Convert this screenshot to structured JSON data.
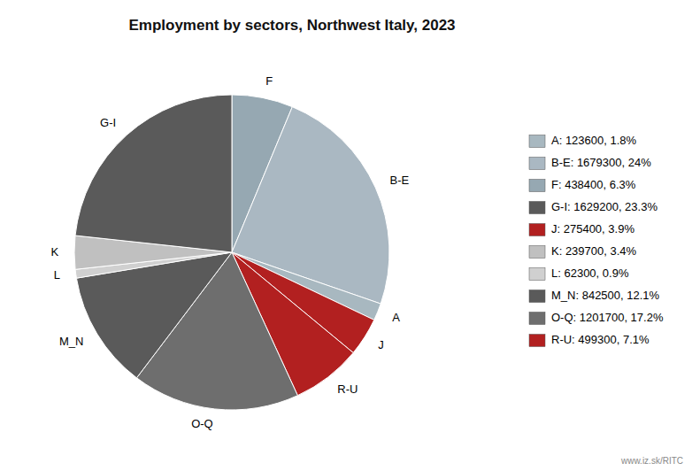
{
  "chart_data": {
    "type": "pie",
    "title": "Employment by sectors, Northwest Italy, 2023",
    "categories": [
      "F",
      "B-E",
      "A",
      "J",
      "R-U",
      "O-Q",
      "M_N",
      "L",
      "K",
      "G-I"
    ],
    "values": [
      438400,
      1679300,
      123600,
      275400,
      499300,
      1201700,
      842500,
      62300,
      239700,
      1629200
    ],
    "colors": [
      "#96a8b2",
      "#aab8c2",
      "#a8b8c0",
      "#b22020",
      "#b22020",
      "#6e6e6e",
      "#5a5a5a",
      "#d0d0d0",
      "#c0c0c0",
      "#5a5a5a"
    ],
    "legend": "right",
    "legend_entries": [
      {
        "category": "A",
        "label": "A: 123600, 1.8%"
      },
      {
        "category": "B-E",
        "label": "B-E: 1679300, 24%"
      },
      {
        "category": "F",
        "label": "F: 438400, 6.3%"
      },
      {
        "category": "G-I",
        "label": "G-I: 1629200, 23.3%"
      },
      {
        "category": "J",
        "label": "J: 275400, 3.9%"
      },
      {
        "category": "K",
        "label": "K: 239700, 3.4%"
      },
      {
        "category": "L",
        "label": "L: 62300, 0.9%"
      },
      {
        "category": "M_N",
        "label": "M_N: 842500, 12.1%"
      },
      {
        "category": "O-Q",
        "label": "O-Q: 1201700, 17.2%"
      },
      {
        "category": "R-U",
        "label": "R-U: 499300, 7.1%"
      }
    ],
    "annotations": [
      "www.iz.sk/RITC"
    ]
  }
}
